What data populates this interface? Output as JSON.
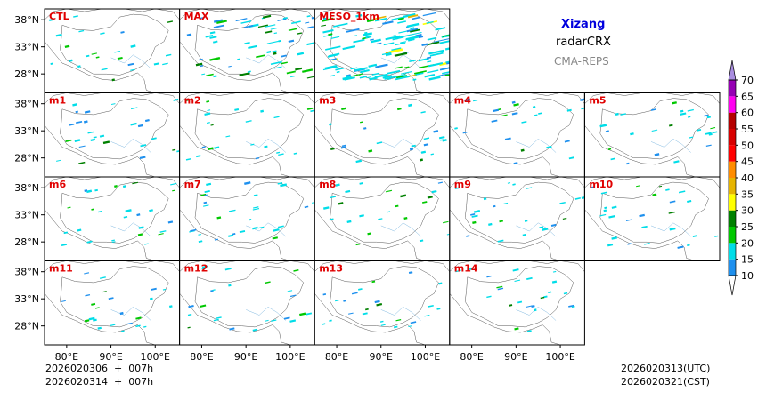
{
  "header": {
    "region": "Xizang",
    "variable": "radarCRX",
    "model": "CMA-REPS",
    "region_color": "#0000dd"
  },
  "footer": {
    "init_line1": "2026020306  +  007h",
    "init_line2": "2026020314  +  007h",
    "valid_utc": "2026020313(UTC)",
    "valid_cst": "2026020321(CST)"
  },
  "chart_data": {
    "type": "heatmap",
    "title": "Xizang radarCRX CMA-REPS",
    "panels": [
      {
        "label": "CTL",
        "intensity": 0.4
      },
      {
        "label": "MAX",
        "intensity": 1.0
      },
      {
        "label": "MESO_1km",
        "intensity": 2.2
      },
      {
        "label": "m1",
        "intensity": 0.45
      },
      {
        "label": "m2",
        "intensity": 0.4
      },
      {
        "label": "m3",
        "intensity": 0.4
      },
      {
        "label": "m4",
        "intensity": 0.4
      },
      {
        "label": "m5",
        "intensity": 0.45
      },
      {
        "label": "m6",
        "intensity": 0.45
      },
      {
        "label": "m7",
        "intensity": 0.5
      },
      {
        "label": "m8",
        "intensity": 0.4
      },
      {
        "label": "m9",
        "intensity": 0.4
      },
      {
        "label": "m10",
        "intensity": 0.45
      },
      {
        "label": "m11",
        "intensity": 0.4
      },
      {
        "label": "m12",
        "intensity": 0.4
      },
      {
        "label": "m13",
        "intensity": 0.4
      },
      {
        "label": "m14",
        "intensity": 0.4
      }
    ],
    "lat_ticks": [
      "38°N",
      "33°N",
      "28°N"
    ],
    "lon_ticks": [
      "80°E",
      "90°E",
      "100°E"
    ],
    "colorbar": {
      "levels": [
        10,
        15,
        20,
        25,
        30,
        35,
        40,
        45,
        50,
        55,
        60,
        65,
        70
      ],
      "labels": [
        "10",
        "15",
        "20",
        "25",
        "30",
        "35",
        "40",
        "45",
        "50",
        "55",
        "60",
        "65",
        "70"
      ],
      "colors": [
        "#1e90ee",
        "#00dde8",
        "#00c800",
        "#008000",
        "#ffff00",
        "#e6b400",
        "#ff8c00",
        "#ff0000",
        "#d80000",
        "#b40000",
        "#ff00f0",
        "#9600b4"
      ],
      "over_color": "#a98ee0",
      "under_color": "#ffffff"
    }
  }
}
